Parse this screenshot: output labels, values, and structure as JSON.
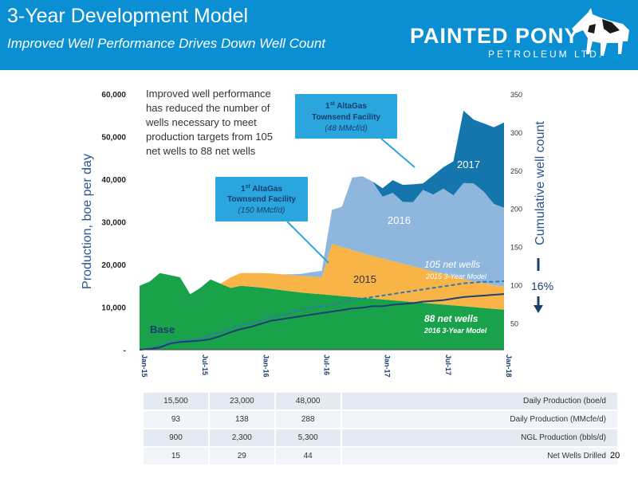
{
  "header": {
    "title": "3-Year Development Model",
    "subtitle": "Improved Well Performance Drives Down Well Count",
    "logo_name": "PAINTED PONY",
    "logo_sub": "PETROLEUM LTD."
  },
  "page_number": "20",
  "colors": {
    "header_bg": "#0b8fd3",
    "base": "#1aa24a",
    "y2015": "#f9b447",
    "y2016": "#8fb7de",
    "y2017": "#1576ad",
    "callout": "#2aa5dd",
    "line_2016_model": "#1e3f73",
    "line_2015_model": "#2e79b5",
    "axis_text": "#2a5590"
  },
  "chart_data": {
    "type": "area",
    "xlabel": "",
    "ylabel": "Production, boe per day",
    "ylabel_right": "Cumulative well count",
    "x_ticks": [
      "Jan-15",
      "Jul-15",
      "Jan-16",
      "Jul-16",
      "Jan-17",
      "Jul-17",
      "Jan-18"
    ],
    "y_ticks": [
      "-",
      "10,000",
      "20,000",
      "30,000",
      "40,000",
      "50,000",
      "60,000"
    ],
    "y_right_ticks": [
      "50",
      "100",
      "150",
      "200",
      "250",
      "300",
      "350"
    ],
    "ylim": [
      0,
      60000
    ],
    "ylim_right": [
      15,
      350
    ],
    "x_months": [
      0,
      1,
      2,
      3,
      4,
      5,
      6,
      7,
      8,
      9,
      10,
      11,
      12,
      13,
      14,
      15,
      16,
      17,
      18,
      19,
      20,
      21,
      22,
      23,
      24,
      25,
      26,
      27,
      28,
      29,
      30,
      31,
      32,
      33,
      34,
      35,
      36
    ],
    "series": [
      {
        "name": "Base",
        "values": [
          15000,
          16000,
          18000,
          17500,
          17000,
          13000,
          14500,
          16500,
          15500,
          14500,
          15000,
          14800,
          14600,
          14300,
          14000,
          13700,
          13400,
          13200,
          13000,
          12800,
          12600,
          12400,
          12200,
          12000,
          11800,
          11600,
          11400,
          11200,
          11000,
          10800,
          10600,
          10400,
          10200,
          10000,
          9800,
          9600,
          9400
        ]
      },
      {
        "name": "2015",
        "values": [
          0,
          0,
          0,
          0,
          0,
          0,
          0,
          0,
          0,
          2500,
          3000,
          3200,
          3400,
          3600,
          3700,
          3800,
          3900,
          4000,
          4000,
          12000,
          11500,
          11000,
          10500,
          10000,
          9600,
          9200,
          8800,
          8400,
          8000,
          7600,
          7200,
          6800,
          6400,
          6000,
          5800,
          5600,
          5400
        ]
      },
      {
        "name": "2016",
        "values": [
          0,
          0,
          0,
          0,
          0,
          0,
          0,
          0,
          0,
          0,
          0,
          0,
          0,
          0,
          0,
          200,
          500,
          1000,
          1500,
          8000,
          9500,
          17000,
          18000,
          17500,
          14500,
          16000,
          14500,
          15000,
          18500,
          18000,
          20000,
          19000,
          22500,
          23000,
          21500,
          19000,
          18500
        ]
      },
      {
        "name": "2017",
        "values": [
          0,
          0,
          0,
          0,
          0,
          0,
          0,
          0,
          0,
          0,
          0,
          0,
          0,
          0,
          0,
          0,
          0,
          0,
          0,
          0,
          0,
          0,
          0,
          0,
          2000,
          3000,
          4000,
          4200,
          1500,
          4500,
          5000,
          8000,
          17000,
          15000,
          16000,
          18000,
          20000
        ]
      }
    ],
    "lines": [
      {
        "name": "105 net wells",
        "model": "2015 3-Year Model",
        "values": [
          15,
          17,
          20,
          25,
          27,
          28,
          30,
          34,
          38,
          43,
          47,
          50,
          54,
          58,
          60,
          64,
          68,
          70,
          72,
          74,
          78,
          80,
          82,
          84,
          86,
          88,
          90,
          92,
          94,
          96,
          98,
          100,
          102,
          103,
          104,
          104,
          105
        ]
      },
      {
        "name": "88 net wells",
        "model": "2016 3-Year Model",
        "values": [
          15,
          16,
          18,
          23,
          25,
          26,
          27,
          29,
          33,
          38,
          42,
          45,
          49,
          53,
          55,
          57,
          59,
          61,
          63,
          65,
          67,
          69,
          70,
          72,
          72,
          74,
          75,
          76,
          78,
          79,
          80,
          82,
          84,
          85,
          86,
          87,
          88
        ]
      }
    ],
    "area_labels": [
      "Base",
      "2015",
      "2016",
      "2017"
    ],
    "annotations": {
      "note": "Improved well performance has reduced the number of wells necessary to meet production targets from 105 net wells to 88 net wells",
      "callout1_title": "AltaGas Townsend Facility",
      "callout1_prefix": "1",
      "callout1_sup": "st",
      "callout1_sub": "(150 MMcf/d)",
      "callout2_title": "AltaGas Townsend Facility",
      "callout2_prefix": "1",
      "callout2_sup": "st",
      "callout2_sub": "(48 MMcf/d)",
      "line1_label": "105 net wells",
      "line1_model": "2015 3-Year Model",
      "line2_label": "88 net wells",
      "line2_model": "2016 3-Year Model",
      "reduction": "16%"
    }
  },
  "table": {
    "rows": [
      {
        "a": "15,500",
        "b": "23,000",
        "c": "48,000",
        "metric": "Daily Production (boe/d"
      },
      {
        "a": "93",
        "b": "138",
        "c": "288",
        "metric": "Daily Production (MMcfe/d)"
      },
      {
        "a": "900",
        "b": "2,300",
        "c": "5,300",
        "metric": "NGL Production (bbls/d)"
      },
      {
        "a": "15",
        "b": "29",
        "c": "44",
        "metric": "Net Wells Drilled"
      }
    ]
  }
}
